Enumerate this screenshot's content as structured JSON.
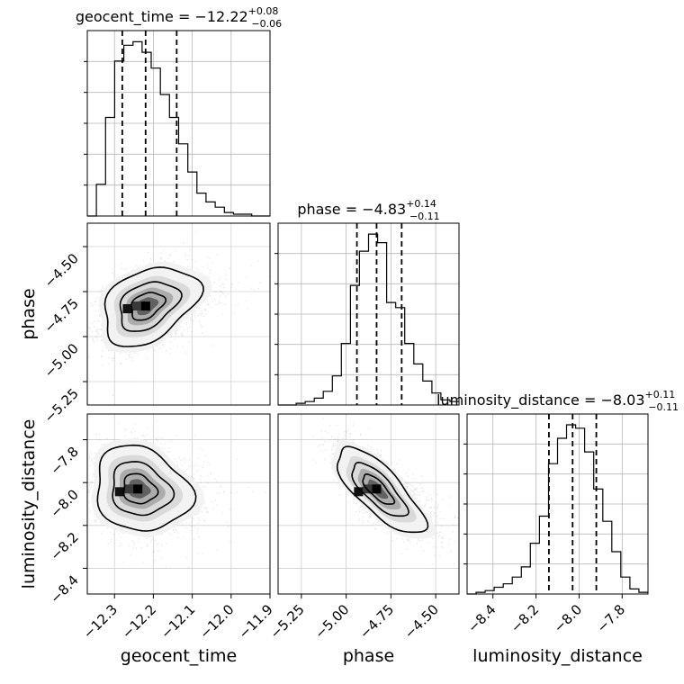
{
  "chart_data": {
    "type": "corner",
    "parameters": [
      "geocent_time",
      "phase",
      "luminosity_distance"
    ],
    "axis_labels": {
      "geocent_time": "geocent_time",
      "phase": "phase",
      "luminosity_distance": "luminosity_distance"
    },
    "titles": [
      {
        "param": "geocent_time",
        "label": "geocent_time = −12.22",
        "plus": "+0.08",
        "minus": "−0.06"
      },
      {
        "param": "phase",
        "label": "phase = −4.83",
        "plus": "+0.14",
        "minus": "−0.11"
      },
      {
        "param": "luminosity_distance",
        "label": "luminosity_distance = −8.03",
        "plus": "+0.11",
        "minus": "−0.11"
      }
    ],
    "ranges": {
      "geocent_time": [
        -12.37,
        -11.9
      ],
      "phase": [
        -5.38,
        -4.37
      ],
      "luminosity_distance": [
        -8.52,
        -7.68
      ]
    },
    "ticks": {
      "geocent_time": [
        -12.3,
        -12.2,
        -12.1,
        -12.0,
        -11.9
      ],
      "phase": [
        -5.25,
        -5.0,
        -4.75,
        -4.5
      ],
      "luminosity_distance": [
        -8.4,
        -8.2,
        -8.0,
        -7.8
      ]
    },
    "tick_labels": {
      "geocent_time": [
        "−12.3",
        "−12.2",
        "−12.1",
        "−12.0",
        "−11.9"
      ],
      "phase": [
        "−5.25",
        "−5.00",
        "−4.75",
        "−4.50"
      ],
      "luminosity_distance": [
        "−8.4",
        "−8.2",
        "−8.0",
        "−7.8"
      ]
    },
    "quantiles": {
      "geocent_time": [
        -12.28,
        -12.22,
        -12.14
      ],
      "phase": [
        -4.94,
        -4.83,
        -4.69
      ],
      "luminosity_distance": [
        -8.14,
        -8.03,
        -7.92
      ]
    },
    "histograms": {
      "geocent_time": {
        "edges": [
          -12.37,
          -12.3465,
          -12.323,
          -12.2995,
          -12.276,
          -12.2525,
          -12.229,
          -12.2055,
          -12.182,
          -12.1585,
          -12.135,
          -12.1115,
          -12.088,
          -12.0645,
          -12.041,
          -12.0175,
          -11.994,
          -11.9705,
          -11.947,
          -11.9235,
          -11.9
        ],
        "counts": [
          0,
          0.18,
          0.56,
          0.88,
          0.97,
          0.99,
          0.93,
          0.84,
          0.69,
          0.56,
          0.41,
          0.25,
          0.13,
          0.08,
          0.05,
          0.02,
          0.01,
          0.01,
          0.0,
          0.0
        ]
      },
      "phase": {
        "edges": [
          -5.38,
          -5.3295,
          -5.279,
          -5.2285,
          -5.178,
          -5.1275,
          -5.077,
          -5.0265,
          -4.976,
          -4.9255,
          -4.875,
          -4.8245,
          -4.774,
          -4.7235,
          -4.673,
          -4.6225,
          -4.572,
          -4.5215,
          -4.471,
          -4.4205,
          -4.37
        ],
        "counts": [
          0,
          0.0,
          0.01,
          0.02,
          0.04,
          0.08,
          0.17,
          0.36,
          0.7,
          0.9,
          1.0,
          0.95,
          0.6,
          0.57,
          0.36,
          0.24,
          0.14,
          0.07,
          0.03,
          0.02
        ]
      },
      "luminosity_distance": {
        "edges": [
          -8.52,
          -8.478,
          -8.436,
          -8.394,
          -8.352,
          -8.31,
          -8.268,
          -8.226,
          -8.184,
          -8.142,
          -8.1,
          -8.058,
          -8.016,
          -7.974,
          -7.932,
          -7.89,
          -7.848,
          -7.806,
          -7.764,
          -7.722,
          -7.68
        ],
        "counts": [
          0,
          0.01,
          0.02,
          0.04,
          0.06,
          0.1,
          0.16,
          0.3,
          0.46,
          0.77,
          0.92,
          1.0,
          0.98,
          0.84,
          0.62,
          0.43,
          0.25,
          0.1,
          0.03,
          0.01
        ]
      }
    },
    "contour_peaks": {
      "phase_vs_geocent_time": [
        -12.22,
        -4.83
      ],
      "luminosity_distance_vs_geocent_time": [
        -12.24,
        -8.03
      ],
      "luminosity_distance_vs_phase": [
        -4.83,
        -8.03
      ]
    },
    "grid": true
  }
}
